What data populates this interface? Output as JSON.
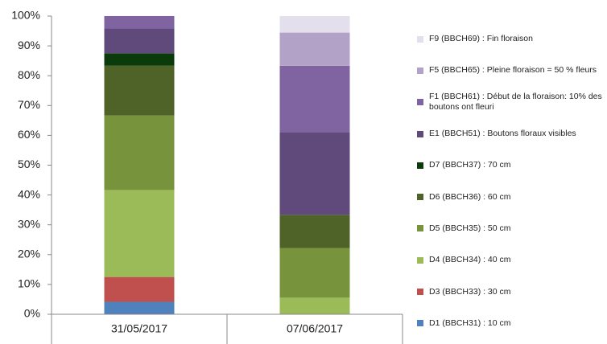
{
  "chart_data": {
    "type": "stacked_bar",
    "categories": [
      "31/05/2017",
      "07/06/2017"
    ],
    "series": [
      {
        "name": "D1 (BBCH31) : 10 cm",
        "color": "#4f81bd",
        "values": [
          4.17,
          0
        ]
      },
      {
        "name": "D3 (BBCH33) : 30 cm",
        "color": "#c0504d",
        "values": [
          8.33,
          0
        ]
      },
      {
        "name": "D4 (BBCH34) : 40 cm",
        "color": "#9bbb59",
        "values": [
          29.17,
          5.56
        ]
      },
      {
        "name": "D5 (BBCH35) : 50 cm",
        "color": "#77933c",
        "values": [
          25,
          16.67
        ]
      },
      {
        "name": "D6 (BBCH36) : 60 cm",
        "color": "#4f6228",
        "values": [
          16.67,
          11.11
        ]
      },
      {
        "name": "D7 (BBCH37) : 70 cm",
        "color": "#0b3b0b",
        "values": [
          4.17,
          0
        ]
      },
      {
        "name": "E1 (BBCH51) : Boutons floraux visibles",
        "color": "#604a7b",
        "values": [
          8.33,
          27.78
        ]
      },
      {
        "name": "F1 (BBCH61) : Début de la floraison: 10% des boutons ont fleuri",
        "color": "#8064a2",
        "values": [
          4.17,
          22.22
        ]
      },
      {
        "name": "F5 (BBCH65) : Pleine floraison = 50 % fleurs",
        "color": "#b3a2c7",
        "values": [
          0,
          11.11
        ]
      },
      {
        "name": "F9 (BBCH69) : Fin floraison",
        "color": "#e4dfec",
        "values": [
          0,
          5.56
        ]
      }
    ],
    "ylim": [
      0,
      100
    ],
    "yticks": [
      {
        "value": 0,
        "label": "0%"
      },
      {
        "value": 10,
        "label": "10%"
      },
      {
        "value": 20,
        "label": "20%"
      },
      {
        "value": 30,
        "label": "30%"
      },
      {
        "value": 40,
        "label": "40%"
      },
      {
        "value": 50,
        "label": "50%"
      },
      {
        "value": 60,
        "label": "60%"
      },
      {
        "value": 70,
        "label": "70%"
      },
      {
        "value": 80,
        "label": "80%"
      },
      {
        "value": 90,
        "label": "90%"
      },
      {
        "value": 100,
        "label": "100%"
      }
    ],
    "grid": false
  }
}
